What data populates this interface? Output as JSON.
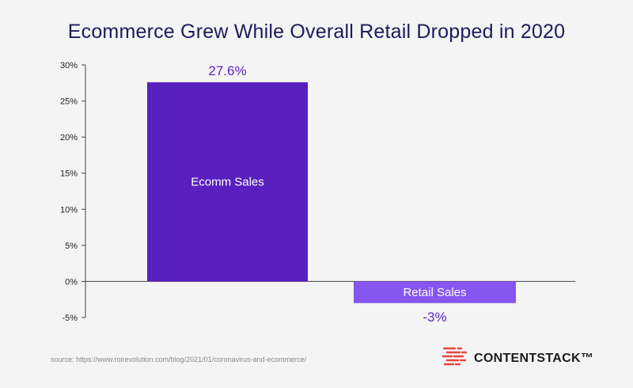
{
  "title": "Ecommerce Grew While Overall Retail Dropped in 2020",
  "source": "source: https://www.roirevolution.com/blog/2021/01/coronavirus-and-ecommerce/",
  "brand": {
    "name": "CONTENTSTACK™",
    "logo_icon": "contentstack-logo-icon",
    "logo_color": "#e8463b"
  },
  "colors": {
    "ecomm": "#5a1fbf",
    "retail": "#8656f0",
    "label": "#5a24c8",
    "axis": "#444444"
  },
  "chart_data": {
    "type": "bar",
    "categories": [
      "Ecomm Sales",
      "Retail Sales"
    ],
    "values": [
      27.6,
      -3
    ],
    "data_labels": [
      "27.6%",
      "-3%"
    ],
    "title": "Ecommerce Grew While Overall Retail Dropped in 2020",
    "xlabel": "",
    "ylabel": "",
    "ylim": [
      -5,
      30
    ],
    "yticks": [
      30,
      25,
      20,
      15,
      10,
      5,
      0,
      -5
    ],
    "ytick_labels": [
      "30%",
      "25%",
      "20%",
      "15%",
      "10%",
      "5%",
      "0%",
      "-5%"
    ],
    "grid": false,
    "legend": "none"
  }
}
